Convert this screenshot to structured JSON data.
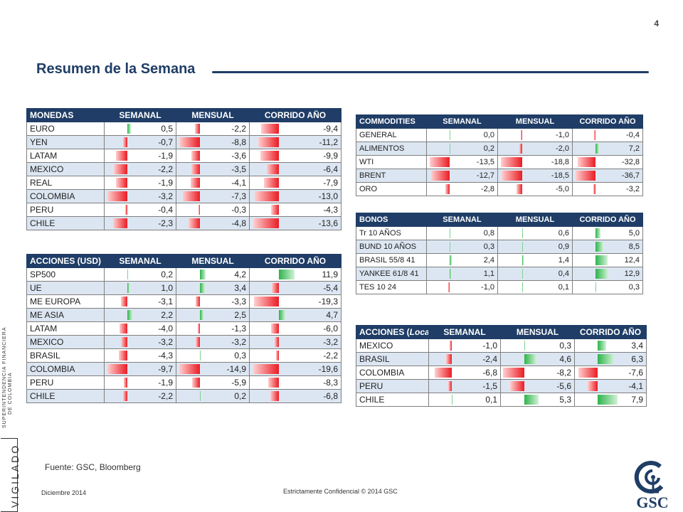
{
  "page": {
    "number": "4",
    "title": "Resumen de la Semana"
  },
  "colors": {
    "header": "#1f3d66",
    "alt_row": "#dce6f2",
    "negative": "#ea1c24",
    "positive": "#2db34a"
  },
  "tables": {
    "monedas": {
      "headers": [
        "MONEDAS",
        "SEMANAL",
        "MENSUAL",
        "CORRIDO AÑO"
      ],
      "max": [
        3.2,
        8.8,
        13.6
      ],
      "rows": [
        {
          "label": "EURO",
          "values": [
            "0,5",
            "-2,2",
            "-9,4"
          ]
        },
        {
          "label": "YEN",
          "values": [
            "-0,7",
            "-8,8",
            "-11,2"
          ]
        },
        {
          "label": "LATAM",
          "values": [
            "-1,9",
            "-3,6",
            "-9,9"
          ]
        },
        {
          "label": "MEXICO",
          "values": [
            "-2,2",
            "-3,5",
            "-6,4"
          ]
        },
        {
          "label": "REAL",
          "values": [
            "-1,9",
            "-4,1",
            "-7,9"
          ]
        },
        {
          "label": "COLOMBIA",
          "values": [
            "-3,2",
            "-7,3",
            "-13,0"
          ]
        },
        {
          "label": "PERU",
          "values": [
            "-0,4",
            "-0,3",
            "-4,3"
          ]
        },
        {
          "label": "CHILE",
          "values": [
            "-2,3",
            "-4,8",
            "-13,6"
          ]
        }
      ]
    },
    "acciones_usd": {
      "headers": [
        "ACCIONES (USD)",
        "SEMANAL",
        "MENSUAL",
        "CORRIDO AÑO"
      ],
      "max": [
        9.7,
        14.9,
        19.6
      ],
      "rows": [
        {
          "label": "SP500",
          "values": [
            "0,2",
            "4,2",
            "11,9"
          ]
        },
        {
          "label": "UE",
          "values": [
            "1,0",
            "3,4",
            "-5,4"
          ]
        },
        {
          "label": "ME EUROPA",
          "values": [
            "-3,1",
            "-3,3",
            "-19,3"
          ]
        },
        {
          "label": "ME ASIA",
          "values": [
            "2,2",
            "2,5",
            "4,7"
          ]
        },
        {
          "label": "LATAM",
          "values": [
            "-4,0",
            "-1,3",
            "-6,0"
          ]
        },
        {
          "label": "MEXICO",
          "values": [
            "-3,2",
            "-3,2",
            "-3,2"
          ]
        },
        {
          "label": "BRASIL",
          "values": [
            "-4,3",
            "0,3",
            "-2,2"
          ]
        },
        {
          "label": "COLOMBIA",
          "values": [
            "-9,7",
            "-14,9",
            "-19,6"
          ]
        },
        {
          "label": "PERU",
          "values": [
            "-1,9",
            "-5,9",
            "-8,3"
          ]
        },
        {
          "label": "CHILE",
          "values": [
            "-2,2",
            "0,2",
            "-6,8"
          ]
        }
      ]
    },
    "commodities": {
      "headers": [
        "COMMODITIES",
        "SEMANAL",
        "MENSUAL",
        "CORRIDO AÑO"
      ],
      "max": [
        13.5,
        18.8,
        36.7
      ],
      "rows": [
        {
          "label": "GENERAL",
          "values": [
            "0,0",
            "-1,0",
            "-0,4"
          ]
        },
        {
          "label": "ALIMENTOS",
          "values": [
            "0,2",
            "-2,0",
            "7,2"
          ]
        },
        {
          "label": "WTI",
          "values": [
            "-13,5",
            "-18,8",
            "-32,8"
          ]
        },
        {
          "label": "BRENT",
          "values": [
            "-12,7",
            "-18,5",
            "-36,7"
          ]
        },
        {
          "label": "ORO",
          "values": [
            "-2,8",
            "-5,0",
            "-3,2"
          ]
        }
      ]
    },
    "bonos": {
      "headers": [
        "BONOS",
        "SEMANAL",
        "MENSUAL",
        "CORRIDO AÑO"
      ],
      "max": [
        20,
        20,
        20
      ],
      "rows": [
        {
          "label": "Tr 10 AÑOS",
          "values": [
            "0,8",
            "0,6",
            "5,0"
          ]
        },
        {
          "label": "BUND 10 AÑOS",
          "values": [
            "0,3",
            "0,9",
            "8,5"
          ]
        },
        {
          "label": "BRASIL 55/8 41",
          "values": [
            "2,4",
            "1,4",
            "12,4"
          ]
        },
        {
          "label": "YANKEE 61/8 41",
          "values": [
            "1,1",
            "0,4",
            "12,9"
          ]
        },
        {
          "label": "TES 10 24",
          "values": [
            "-1,0",
            "0,1",
            "0,3"
          ]
        }
      ]
    },
    "acciones_local": {
      "headers": [
        "ACCIONES (Local)",
        "SEMANAL",
        "MENSUAL",
        "CORRIDO AÑO"
      ],
      "max": [
        8,
        8,
        8
      ],
      "rows": [
        {
          "label": "MEXICO",
          "values": [
            "-1,0",
            "0,3",
            "3,4"
          ]
        },
        {
          "label": "BRASIL",
          "values": [
            "-2,4",
            "4,6",
            "6,3"
          ]
        },
        {
          "label": "COLOMBIA",
          "values": [
            "-6,8",
            "-8,2",
            "-7,6"
          ]
        },
        {
          "label": "PERU",
          "values": [
            "-1,5",
            "-5,6",
            "-4,1"
          ]
        },
        {
          "label": "CHILE",
          "values": [
            "0,1",
            "5,3",
            "7,9"
          ]
        }
      ]
    }
  },
  "footer": {
    "source": "Fuente: GSC, Bloomberg",
    "date": "Diciembre 2014",
    "confidential": "Estrictamente Confidencial  © 2014 GSC"
  },
  "side_stamp": {
    "main": "VIGILADO",
    "line1": "SUPERINTENDENCIA FINANCIERA",
    "line2": "DE COLOMBIA"
  },
  "logo": {
    "text": "GSC",
    "icon": "gsc-logo-icon"
  }
}
